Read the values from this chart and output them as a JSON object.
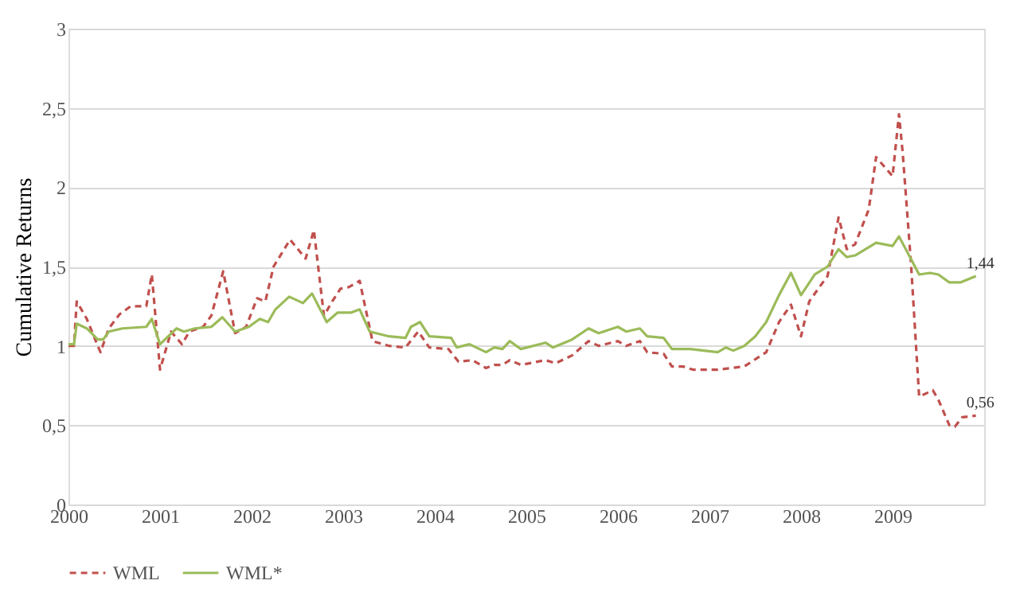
{
  "chart_data": {
    "type": "line",
    "ylabel": "Cumulative Returns",
    "xlim": [
      2000,
      2010
    ],
    "xticks": [
      2000,
      2001,
      2002,
      2003,
      2004,
      2005,
      2006,
      2007,
      2008,
      2009
    ],
    "ylim": [
      0,
      3
    ],
    "yticks": [
      0,
      {
        "value": 0.5,
        "label": "0,5"
      },
      1,
      {
        "value": 1.5,
        "label": "1,5"
      },
      2,
      {
        "value": 2.5,
        "label": "2,5"
      },
      3
    ],
    "grid": "y",
    "legend": "bottom",
    "marker": "none",
    "series": [
      {
        "name": "WML",
        "color": "#c0504d",
        "line_style": "dashed",
        "x": [
          2000.0,
          2000.06,
          2000.09,
          2000.2,
          2000.32,
          2000.35,
          2000.44,
          2000.56,
          2000.68,
          2000.85,
          2000.91,
          2001.0,
          2001.12,
          2001.24,
          2001.32,
          2001.47,
          2001.56,
          2001.69,
          2001.82,
          2001.94,
          2002.06,
          2002.15,
          2002.24,
          2002.42,
          2002.59,
          2002.68,
          2002.79,
          2002.88,
          2002.97,
          2003.06,
          2003.18,
          2003.32,
          2003.5,
          2003.68,
          2003.82,
          2003.94,
          2004.15,
          2004.26,
          2004.41,
          2004.56,
          2004.65,
          2004.74,
          2004.82,
          2004.94,
          2005.21,
          2005.32,
          2005.5,
          2005.68,
          2005.79,
          2006.0,
          2006.09,
          2006.24,
          2006.32,
          2006.5,
          2006.59,
          2006.71,
          2006.82,
          2007.09,
          2007.38,
          2007.62,
          2007.76,
          2007.89,
          2008.0,
          2008.09,
          2008.2,
          2008.29,
          2008.41,
          2008.5,
          2008.59,
          2008.74,
          2008.82,
          2009.0,
          2009.07,
          2009.11,
          2009.2,
          2009.29,
          2009.44,
          2009.5,
          2009.62,
          2009.68,
          2009.76,
          2009.91
        ],
        "values": [
          1.0,
          1.0,
          1.28,
          1.17,
          1.0,
          0.96,
          1.11,
          1.2,
          1.25,
          1.25,
          1.45,
          0.85,
          1.09,
          1.01,
          1.09,
          1.12,
          1.19,
          1.47,
          1.08,
          1.12,
          1.3,
          1.28,
          1.5,
          1.67,
          1.55,
          1.73,
          1.19,
          1.28,
          1.36,
          1.37,
          1.41,
          1.03,
          1.0,
          0.99,
          1.09,
          0.99,
          0.98,
          0.9,
          0.91,
          0.86,
          0.88,
          0.88,
          0.91,
          0.88,
          0.91,
          0.89,
          0.94,
          1.03,
          1.0,
          1.03,
          1.0,
          1.03,
          0.96,
          0.95,
          0.87,
          0.87,
          0.85,
          0.85,
          0.87,
          0.96,
          1.15,
          1.26,
          1.06,
          1.28,
          1.37,
          1.44,
          1.81,
          1.61,
          1.64,
          1.86,
          2.19,
          2.07,
          2.46,
          2.22,
          1.53,
          0.68,
          0.72,
          0.66,
          0.5,
          0.49,
          0.55,
          0.56
        ]
      },
      {
        "name": "WML*",
        "color": "#9bbb59",
        "line_style": "solid",
        "x": [
          2000.0,
          2000.06,
          2000.09,
          2000.2,
          2000.32,
          2000.38,
          2000.44,
          2000.59,
          2000.85,
          2000.91,
          2001.0,
          2001.18,
          2001.26,
          2001.38,
          2001.56,
          2001.68,
          2001.82,
          2001.97,
          2002.09,
          2002.18,
          2002.26,
          2002.41,
          2002.56,
          2002.66,
          2002.82,
          2002.94,
          2003.09,
          2003.18,
          2003.29,
          2003.5,
          2003.68,
          2003.74,
          2003.84,
          2003.94,
          2004.18,
          2004.24,
          2004.38,
          2004.56,
          2004.65,
          2004.74,
          2004.82,
          2004.94,
          2005.21,
          2005.29,
          2005.5,
          2005.68,
          2005.79,
          2006.0,
          2006.09,
          2006.24,
          2006.32,
          2006.5,
          2006.59,
          2006.79,
          2007.09,
          2007.18,
          2007.26,
          2007.38,
          2007.5,
          2007.62,
          2007.76,
          2007.89,
          2008.0,
          2008.15,
          2008.29,
          2008.41,
          2008.5,
          2008.59,
          2008.82,
          2009.0,
          2009.07,
          2009.18,
          2009.29,
          2009.41,
          2009.5,
          2009.62,
          2009.74,
          2009.91
        ],
        "values": [
          1.01,
          1.01,
          1.14,
          1.11,
          1.04,
          1.04,
          1.09,
          1.11,
          1.12,
          1.17,
          1.01,
          1.11,
          1.09,
          1.11,
          1.12,
          1.18,
          1.09,
          1.12,
          1.17,
          1.15,
          1.23,
          1.31,
          1.27,
          1.33,
          1.15,
          1.21,
          1.21,
          1.23,
          1.09,
          1.06,
          1.05,
          1.12,
          1.15,
          1.06,
          1.05,
          0.99,
          1.01,
          0.96,
          0.99,
          0.98,
          1.03,
          0.98,
          1.02,
          0.99,
          1.04,
          1.11,
          1.08,
          1.12,
          1.09,
          1.11,
          1.06,
          1.05,
          0.98,
          0.98,
          0.96,
          0.99,
          0.97,
          1.0,
          1.06,
          1.15,
          1.32,
          1.46,
          1.32,
          1.45,
          1.5,
          1.61,
          1.56,
          1.57,
          1.65,
          1.63,
          1.69,
          1.57,
          1.45,
          1.46,
          1.45,
          1.4,
          1.4,
          1.44
        ]
      }
    ],
    "annotations": [
      {
        "text": "1,44",
        "x": 2009.91,
        "y": 1.44
      },
      {
        "text": "0,56",
        "x": 2009.91,
        "y": 0.56
      }
    ]
  }
}
